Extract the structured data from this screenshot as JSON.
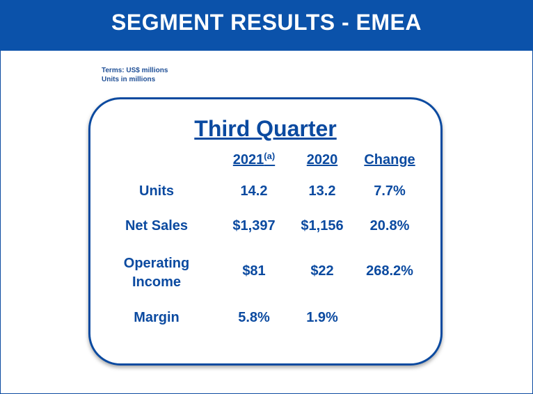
{
  "banner": {
    "title": "SEGMENT RESULTS - EMEA"
  },
  "terms": {
    "line1": "Terms: US$ millions",
    "line2": "Units in millions"
  },
  "table": {
    "title": "Third Quarter",
    "headers": {
      "col1": "2021",
      "col1_note": "(a)",
      "col2": "2020",
      "col3": "Change"
    },
    "rows": [
      {
        "label": "Units",
        "v2021": "14.2",
        "v2020": "13.2",
        "change": "7.7%"
      },
      {
        "label": "Net Sales",
        "v2021": "$1,397",
        "v2020": "$1,156",
        "change": "20.8%"
      },
      {
        "label_line1": "Operating",
        "label_line2": "Income",
        "v2021": "$81",
        "v2020": "$22",
        "change": "268.2%"
      },
      {
        "label": "Margin",
        "v2021": "5.8%",
        "v2020": "1.9%",
        "change": ""
      }
    ]
  },
  "colors": {
    "brand_blue": "#0b52aa",
    "text_blue": "#0b4aa0"
  }
}
